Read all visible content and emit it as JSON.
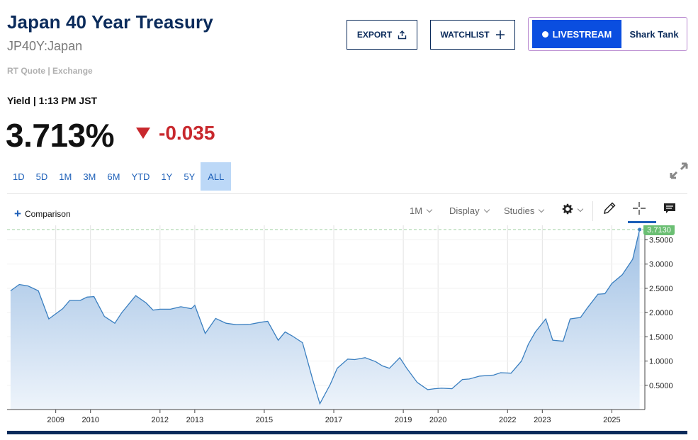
{
  "header": {
    "title": "Japan 40 Year Treasury",
    "symbol": "JP40Y:Japan",
    "quote_source": "RT Quote | Exchange"
  },
  "actions": {
    "export_label": "EXPORT",
    "watchlist_label": "WATCHLIST",
    "livestream_label": "LIVESTREAM",
    "livestream_show": "Shark Tank"
  },
  "quote": {
    "yield_label": "Yield | 1:13 PM JST",
    "price": "3.713%",
    "change": "-0.035",
    "change_color": "#c8282d"
  },
  "ranges": [
    {
      "label": "1D",
      "active": false
    },
    {
      "label": "5D",
      "active": false
    },
    {
      "label": "1M",
      "active": false
    },
    {
      "label": "3M",
      "active": false
    },
    {
      "label": "6M",
      "active": false
    },
    {
      "label": "YTD",
      "active": false
    },
    {
      "label": "1Y",
      "active": false
    },
    {
      "label": "5Y",
      "active": false
    },
    {
      "label": "ALL",
      "active": true
    }
  ],
  "toolbar": {
    "comparison_label": "Comparison",
    "interval_label": "1M",
    "display_label": "Display",
    "studies_label": "Studies"
  },
  "icons": {
    "export": "share-upload-icon",
    "watchlist": "plus-icon",
    "expand": "expand-arrows-icon",
    "settings": "gear-icon",
    "draw": "pencil-icon",
    "crosshair": "crosshair-icon",
    "notes": "chat-note-icon"
  },
  "colors": {
    "brand_navy": "#0b2b5b",
    "accent_blue": "#1c5fb8",
    "live_blue": "#0a4ee0",
    "line": "#3a7fc0",
    "last_price_tag": "#6bbf73"
  },
  "chart_data": {
    "type": "area",
    "x_ticks": [
      "2009",
      "2010",
      "2012",
      "2013",
      "2015",
      "2017",
      "2019",
      "2020",
      "2022",
      "2023",
      "2025"
    ],
    "y_ticks": [
      "0.5000",
      "1.0000",
      "1.5000",
      "2.0000",
      "2.5000",
      "3.0000",
      "3.5000"
    ],
    "ylim": [
      0,
      3.8
    ],
    "xlim": [
      2007.6,
      2025.95
    ],
    "last_value_label": "3.7130",
    "last_value": 3.713,
    "grid": "vertical",
    "series": [
      {
        "x": [
          2007.7,
          2007.95,
          2008.2,
          2008.5,
          2008.8,
          2009.2,
          2009.4,
          2009.7,
          2009.9,
          2010.1,
          2010.4,
          2010.7,
          2010.9,
          2011.3,
          2011.6,
          2011.8,
          2012.0,
          2012.3,
          2012.6,
          2012.9,
          2013.0,
          2013.3,
          2013.6,
          2013.9,
          2014.2,
          2014.6,
          2014.9,
          2015.1,
          2015.4,
          2015.6,
          2015.8,
          2016.1,
          2016.4,
          2016.6,
          2016.9,
          2017.1,
          2017.4,
          2017.6,
          2017.9,
          2018.2,
          2018.4,
          2018.6,
          2018.9,
          2019.1,
          2019.4,
          2019.7,
          2019.9,
          2020.1,
          2020.4,
          2020.7,
          2020.9,
          2021.2,
          2021.6,
          2021.8,
          2022.1,
          2022.4,
          2022.6,
          2022.8,
          2023.1,
          2023.3,
          2023.6,
          2023.8,
          2024.1,
          2024.3,
          2024.6,
          2024.8,
          2025.0,
          2025.3,
          2025.6,
          2025.8
        ],
        "values": [
          2.45,
          2.58,
          2.55,
          2.45,
          1.87,
          2.08,
          2.25,
          2.25,
          2.32,
          2.33,
          1.92,
          1.78,
          2.0,
          2.35,
          2.2,
          2.05,
          2.07,
          2.07,
          2.12,
          2.08,
          2.15,
          1.57,
          1.88,
          1.78,
          1.75,
          1.76,
          1.8,
          1.82,
          1.43,
          1.6,
          1.52,
          1.38,
          0.6,
          0.12,
          0.52,
          0.85,
          1.04,
          1.03,
          1.07,
          0.99,
          0.9,
          0.85,
          1.07,
          0.85,
          0.56,
          0.41,
          0.43,
          0.44,
          0.43,
          0.62,
          0.63,
          0.69,
          0.71,
          0.76,
          0.75,
          1.0,
          1.35,
          1.6,
          1.87,
          1.43,
          1.41,
          1.87,
          1.9,
          2.1,
          2.38,
          2.39,
          2.6,
          2.78,
          3.1,
          3.713
        ]
      }
    ]
  }
}
